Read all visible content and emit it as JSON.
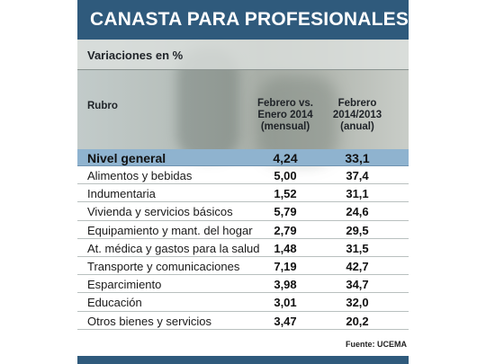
{
  "title": "CANASTA PARA PROFESIONALES",
  "subtitle": "Variaciones en %",
  "source": "Fuente: UCEMA",
  "colors": {
    "title_bar": "#2f5a7c",
    "highlight_row": "#8fb3cf"
  },
  "chart_data": {
    "type": "table",
    "columns": [
      "Rubro",
      "Febrero vs. Enero 2014 (mensual)",
      "Febrero 2014/2013 (anual)"
    ],
    "column_lines": [
      [
        "Rubro"
      ],
      [
        "Febrero vs.",
        "Enero 2014",
        "(mensual)"
      ],
      [
        "Febrero",
        "2014/2013",
        "(anual)"
      ]
    ],
    "rows": [
      {
        "rubro": "Nivel general",
        "mensual": "4,24",
        "anual": "33,1",
        "highlight": true
      },
      {
        "rubro": "Alimentos y bebidas",
        "mensual": "5,00",
        "anual": "37,4"
      },
      {
        "rubro": "Indumentaria",
        "mensual": "1,52",
        "anual": "31,1"
      },
      {
        "rubro": "Vivienda y servicios básicos",
        "mensual": "5,79",
        "anual": "24,6"
      },
      {
        "rubro": "Equipamiento y mant. del hogar",
        "mensual": "2,79",
        "anual": "29,5"
      },
      {
        "rubro": "At. médica y gastos para la salud",
        "mensual": "1,48",
        "anual": "31,5"
      },
      {
        "rubro": "Transporte y comunicaciones",
        "mensual": "7,19",
        "anual": "42,7"
      },
      {
        "rubro": "Esparcimiento",
        "mensual": "3,98",
        "anual": "34,7"
      },
      {
        "rubro": "Educación",
        "mensual": "3,01",
        "anual": "32,0"
      },
      {
        "rubro": "Otros bienes y servicios",
        "mensual": "3,47",
        "anual": "20,2"
      }
    ]
  }
}
